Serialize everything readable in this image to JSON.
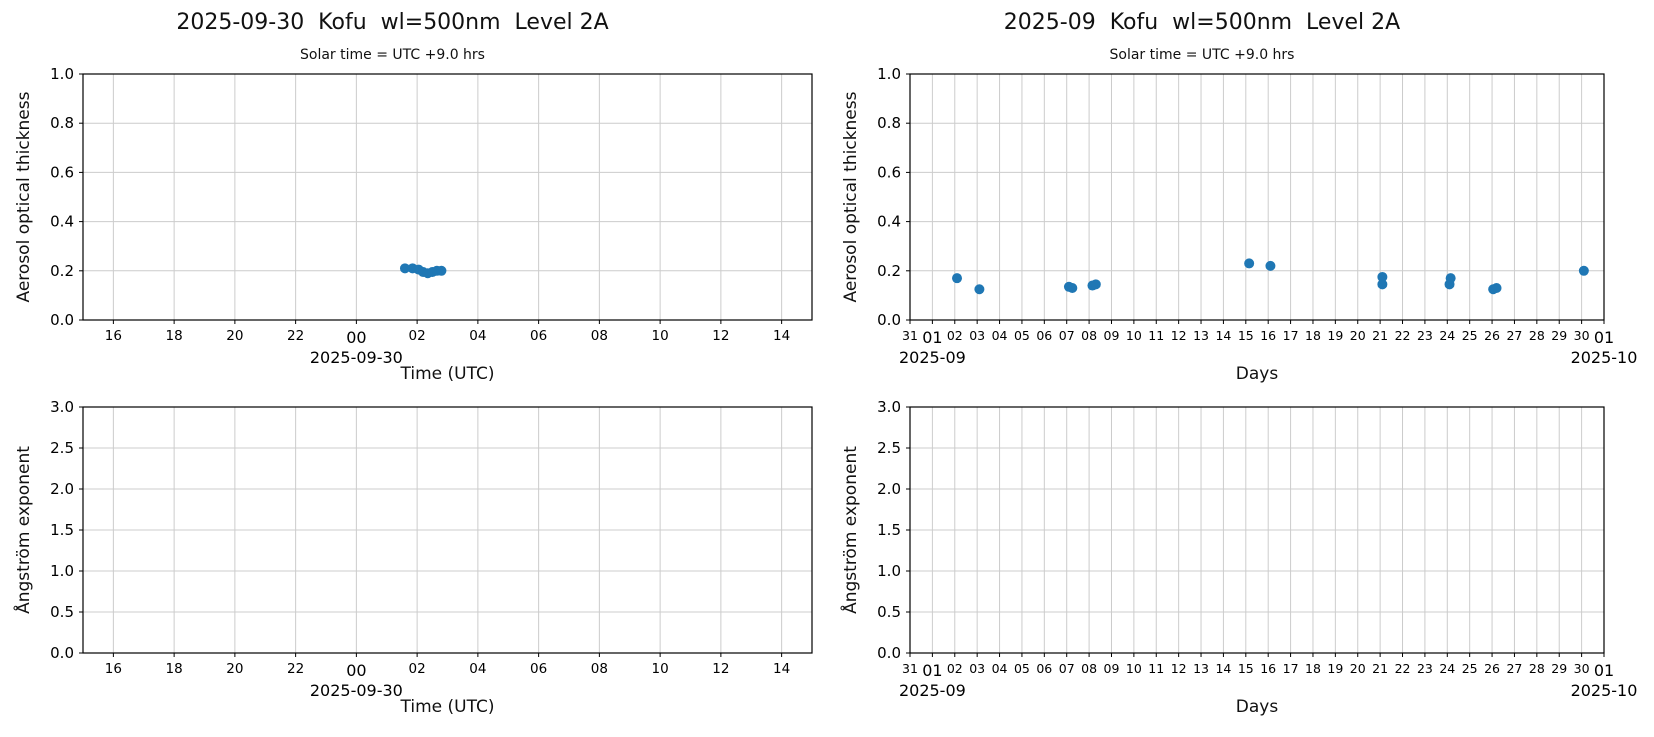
{
  "figure": {
    "background": "#ffffff",
    "marker_color": "#1f77b4",
    "grid_color": "#cccccc",
    "spine_color": "#000000"
  },
  "chart_data": [
    {
      "type": "scatter",
      "title": "2025-09-30  Kofu  wl=500nm  Level 2A",
      "subtitle": "Solar time = UTC +9.0 hrs",
      "xlabel": "Time (UTC)",
      "ylabel": "Aerosol optical thickness",
      "grid": true,
      "xlim": [
        -9,
        15
      ],
      "ylim": [
        0,
        1
      ],
      "yticks": [
        {
          "v": 0.0,
          "label": "0.0"
        },
        {
          "v": 0.2,
          "label": "0.2"
        },
        {
          "v": 0.4,
          "label": "0.4"
        },
        {
          "v": 0.6,
          "label": "0.6"
        },
        {
          "v": 0.8,
          "label": "0.8"
        },
        {
          "v": 1.0,
          "label": "1.0"
        }
      ],
      "xticks": [
        {
          "v": -8,
          "label": "16"
        },
        {
          "v": -6,
          "label": "18"
        },
        {
          "v": -4,
          "label": "20"
        },
        {
          "v": -2,
          "label": "22"
        },
        {
          "v": 0,
          "label": "00",
          "major": true,
          "date": "2025-09-30"
        },
        {
          "v": 2,
          "label": "02"
        },
        {
          "v": 4,
          "label": "04"
        },
        {
          "v": 6,
          "label": "06"
        },
        {
          "v": 8,
          "label": "08"
        },
        {
          "v": 10,
          "label": "10"
        },
        {
          "v": 12,
          "label": "12"
        },
        {
          "v": 14,
          "label": "14"
        }
      ],
      "points": [
        {
          "x": 1.6,
          "y": 0.21
        },
        {
          "x": 1.85,
          "y": 0.21
        },
        {
          "x": 2.05,
          "y": 0.205
        },
        {
          "x": 2.2,
          "y": 0.195
        },
        {
          "x": 2.35,
          "y": 0.19
        },
        {
          "x": 2.5,
          "y": 0.195
        },
        {
          "x": 2.65,
          "y": 0.2
        },
        {
          "x": 2.8,
          "y": 0.2
        }
      ]
    },
    {
      "type": "scatter",
      "title": "2025-09  Kofu  wl=500nm  Level 2A",
      "subtitle": "Solar time = UTC +9.0 hrs",
      "xlabel": "Days",
      "ylabel": "Aerosol optical thickness",
      "grid": true,
      "xlim": [
        0,
        31
      ],
      "ylim": [
        0,
        1
      ],
      "yticks": [
        {
          "v": 0.0,
          "label": "0.0"
        },
        {
          "v": 0.2,
          "label": "0.2"
        },
        {
          "v": 0.4,
          "label": "0.4"
        },
        {
          "v": 0.6,
          "label": "0.6"
        },
        {
          "v": 0.8,
          "label": "0.8"
        },
        {
          "v": 1.0,
          "label": "1.0"
        }
      ],
      "xticks": [
        {
          "v": 0,
          "label": "31"
        },
        {
          "v": 1,
          "label": "01",
          "major": true,
          "date": "2025-09"
        },
        {
          "v": 2,
          "label": "02"
        },
        {
          "v": 3,
          "label": "03"
        },
        {
          "v": 4,
          "label": "04"
        },
        {
          "v": 5,
          "label": "05"
        },
        {
          "v": 6,
          "label": "06"
        },
        {
          "v": 7,
          "label": "07"
        },
        {
          "v": 8,
          "label": "08"
        },
        {
          "v": 9,
          "label": "09"
        },
        {
          "v": 10,
          "label": "10"
        },
        {
          "v": 11,
          "label": "11"
        },
        {
          "v": 12,
          "label": "12"
        },
        {
          "v": 13,
          "label": "13"
        },
        {
          "v": 14,
          "label": "14"
        },
        {
          "v": 15,
          "label": "15"
        },
        {
          "v": 16,
          "label": "16"
        },
        {
          "v": 17,
          "label": "17"
        },
        {
          "v": 18,
          "label": "18"
        },
        {
          "v": 19,
          "label": "19"
        },
        {
          "v": 20,
          "label": "20"
        },
        {
          "v": 21,
          "label": "21"
        },
        {
          "v": 22,
          "label": "22"
        },
        {
          "v": 23,
          "label": "23"
        },
        {
          "v": 24,
          "label": "24"
        },
        {
          "v": 25,
          "label": "25"
        },
        {
          "v": 26,
          "label": "26"
        },
        {
          "v": 27,
          "label": "27"
        },
        {
          "v": 28,
          "label": "28"
        },
        {
          "v": 29,
          "label": "29"
        },
        {
          "v": 30,
          "label": "30"
        },
        {
          "v": 31,
          "label": "01",
          "major": true,
          "date": "2025-10"
        }
      ],
      "points": [
        {
          "x": 2.1,
          "y": 0.17
        },
        {
          "x": 3.1,
          "y": 0.125
        },
        {
          "x": 7.1,
          "y": 0.135
        },
        {
          "x": 7.25,
          "y": 0.13
        },
        {
          "x": 8.15,
          "y": 0.14
        },
        {
          "x": 8.3,
          "y": 0.145
        },
        {
          "x": 15.15,
          "y": 0.23
        },
        {
          "x": 16.1,
          "y": 0.22
        },
        {
          "x": 21.1,
          "y": 0.175
        },
        {
          "x": 21.1,
          "y": 0.145
        },
        {
          "x": 24.1,
          "y": 0.145
        },
        {
          "x": 24.15,
          "y": 0.17
        },
        {
          "x": 26.05,
          "y": 0.125
        },
        {
          "x": 26.2,
          "y": 0.13
        },
        {
          "x": 30.1,
          "y": 0.2
        }
      ]
    },
    {
      "type": "scatter",
      "title": "",
      "subtitle": "",
      "xlabel": "Time (UTC)",
      "ylabel": "Ångström exponent",
      "grid": true,
      "xlim": [
        -9,
        15
      ],
      "ylim": [
        0,
        3
      ],
      "yticks": [
        {
          "v": 0.0,
          "label": "0.0"
        },
        {
          "v": 0.5,
          "label": "0.5"
        },
        {
          "v": 1.0,
          "label": "1.0"
        },
        {
          "v": 1.5,
          "label": "1.5"
        },
        {
          "v": 2.0,
          "label": "2.0"
        },
        {
          "v": 2.5,
          "label": "2.5"
        },
        {
          "v": 3.0,
          "label": "3.0"
        }
      ],
      "xticks": [
        {
          "v": -8,
          "label": "16"
        },
        {
          "v": -6,
          "label": "18"
        },
        {
          "v": -4,
          "label": "20"
        },
        {
          "v": -2,
          "label": "22"
        },
        {
          "v": 0,
          "label": "00",
          "major": true,
          "date": "2025-09-30"
        },
        {
          "v": 2,
          "label": "02"
        },
        {
          "v": 4,
          "label": "04"
        },
        {
          "v": 6,
          "label": "06"
        },
        {
          "v": 8,
          "label": "08"
        },
        {
          "v": 10,
          "label": "10"
        },
        {
          "v": 12,
          "label": "12"
        },
        {
          "v": 14,
          "label": "14"
        }
      ],
      "points": []
    },
    {
      "type": "scatter",
      "title": "",
      "subtitle": "",
      "xlabel": "Days",
      "ylabel": "Ångström exponent",
      "grid": true,
      "xlim": [
        0,
        31
      ],
      "ylim": [
        0,
        3
      ],
      "yticks": [
        {
          "v": 0.0,
          "label": "0.0"
        },
        {
          "v": 0.5,
          "label": "0.5"
        },
        {
          "v": 1.0,
          "label": "1.0"
        },
        {
          "v": 1.5,
          "label": "1.5"
        },
        {
          "v": 2.0,
          "label": "2.0"
        },
        {
          "v": 2.5,
          "label": "2.5"
        },
        {
          "v": 3.0,
          "label": "3.0"
        }
      ],
      "xticks": [
        {
          "v": 0,
          "label": "31"
        },
        {
          "v": 1,
          "label": "01",
          "major": true,
          "date": "2025-09"
        },
        {
          "v": 2,
          "label": "02"
        },
        {
          "v": 3,
          "label": "03"
        },
        {
          "v": 4,
          "label": "04"
        },
        {
          "v": 5,
          "label": "05"
        },
        {
          "v": 6,
          "label": "06"
        },
        {
          "v": 7,
          "label": "07"
        },
        {
          "v": 8,
          "label": "08"
        },
        {
          "v": 9,
          "label": "09"
        },
        {
          "v": 10,
          "label": "10"
        },
        {
          "v": 11,
          "label": "11"
        },
        {
          "v": 12,
          "label": "12"
        },
        {
          "v": 13,
          "label": "13"
        },
        {
          "v": 14,
          "label": "14"
        },
        {
          "v": 15,
          "label": "15"
        },
        {
          "v": 16,
          "label": "16"
        },
        {
          "v": 17,
          "label": "17"
        },
        {
          "v": 18,
          "label": "18"
        },
        {
          "v": 19,
          "label": "19"
        },
        {
          "v": 20,
          "label": "20"
        },
        {
          "v": 21,
          "label": "21"
        },
        {
          "v": 22,
          "label": "22"
        },
        {
          "v": 23,
          "label": "23"
        },
        {
          "v": 24,
          "label": "24"
        },
        {
          "v": 25,
          "label": "25"
        },
        {
          "v": 26,
          "label": "26"
        },
        {
          "v": 27,
          "label": "27"
        },
        {
          "v": 28,
          "label": "28"
        },
        {
          "v": 29,
          "label": "29"
        },
        {
          "v": 30,
          "label": "30"
        },
        {
          "v": 31,
          "label": "01",
          "major": true,
          "date": "2025-10"
        }
      ],
      "points": []
    }
  ]
}
